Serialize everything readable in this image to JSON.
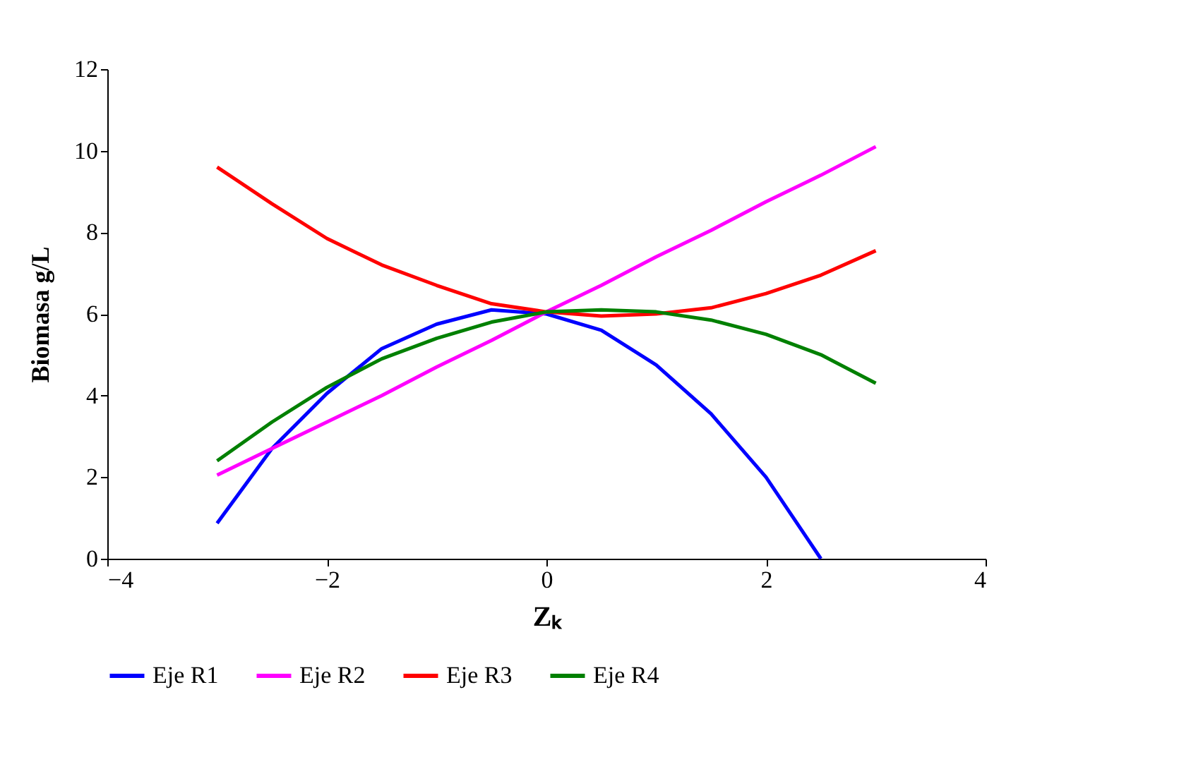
{
  "chart_data": {
    "type": "line",
    "xlabel": "Zₖ",
    "ylabel": "Biomasa g/L",
    "x": [
      -3,
      -2.5,
      -2,
      -1.5,
      -1,
      -0.5,
      0,
      0.5,
      1,
      1.5,
      2,
      2.5,
      3
    ],
    "series": [
      {
        "name": "Eje R1",
        "color": "#0000ff",
        "values": [
          0.87,
          2.7,
          4.05,
          5.15,
          5.75,
          6.1,
          6.0,
          5.6,
          4.75,
          3.55,
          2.0,
          0,
          null
        ]
      },
      {
        "name": "Eje R2",
        "color": "#ff00ff",
        "values": [
          2.05,
          2.7,
          3.35,
          4.0,
          4.7,
          5.35,
          6.05,
          6.7,
          7.4,
          8.05,
          8.75,
          9.4,
          10.1
        ]
      },
      {
        "name": "Eje R3",
        "color": "#ff0000",
        "values": [
          9.6,
          8.7,
          7.85,
          7.2,
          6.7,
          6.25,
          6.05,
          5.95,
          6.0,
          6.15,
          6.5,
          6.95,
          7.55
        ]
      },
      {
        "name": "Eje R4",
        "color": "#008000",
        "values": [
          2.4,
          3.35,
          4.2,
          4.9,
          5.4,
          5.8,
          6.05,
          6.1,
          6.05,
          5.85,
          5.5,
          5.0,
          4.3
        ]
      }
    ],
    "xlim": [
      -4,
      4
    ],
    "xticks": [
      -4,
      -2,
      0,
      2,
      4
    ],
    "ylim": [
      0,
      12
    ],
    "yticks": [
      0,
      2,
      4,
      6,
      8,
      10,
      12
    ],
    "grid": false,
    "legend": "bottom",
    "marker": "none",
    "line_style": "solid"
  }
}
